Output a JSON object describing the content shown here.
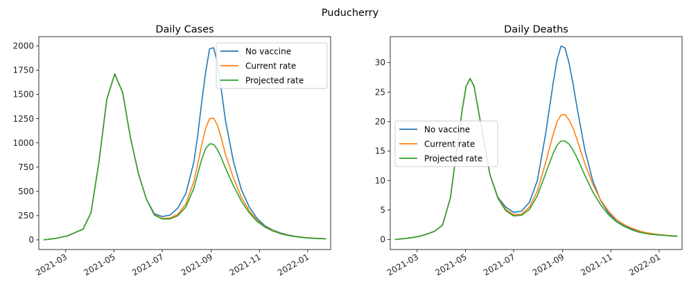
{
  "figure_title": "Puducherry",
  "chart_data": [
    {
      "type": "line",
      "title": "Daily Cases",
      "xlabel": "",
      "ylabel": "",
      "x_ticks": [
        "2021-03",
        "2021-05",
        "2021-07",
        "2021-09",
        "2021-11",
        "2022-01"
      ],
      "y_ticks": [
        0,
        250,
        500,
        750,
        1000,
        1250,
        1500,
        1750,
        2000
      ],
      "ylim": [
        -100,
        2095
      ],
      "legend_position": "upper-right",
      "series": [
        {
          "name": "No vaccine",
          "color": "#1f77b4",
          "x": [
            0,
            15,
            30,
            40,
            50,
            60,
            70,
            80,
            90,
            100,
            110,
            120,
            130,
            140,
            150,
            160,
            170,
            180,
            190,
            195,
            200,
            205,
            210,
            215,
            220,
            225,
            230,
            240,
            250,
            260,
            270,
            280,
            290,
            300,
            310,
            320,
            330,
            340,
            350,
            357
          ],
          "y": [
            0,
            15,
            40,
            75,
            110,
            280,
            800,
            1450,
            1710,
            1520,
            1050,
            680,
            420,
            270,
            240,
            255,
            330,
            480,
            800,
            1080,
            1420,
            1730,
            1970,
            1980,
            1820,
            1530,
            1230,
            810,
            520,
            340,
            220,
            145,
            100,
            70,
            50,
            35,
            25,
            18,
            14,
            12
          ]
        },
        {
          "name": "Current rate",
          "color": "#ff7f0e",
          "x": [
            0,
            15,
            30,
            40,
            50,
            60,
            70,
            80,
            90,
            100,
            110,
            120,
            130,
            140,
            150,
            160,
            170,
            180,
            190,
            195,
            200,
            205,
            210,
            215,
            220,
            225,
            230,
            240,
            250,
            260,
            270,
            280,
            290,
            300,
            310,
            320,
            330,
            340,
            350,
            357
          ],
          "y": [
            0,
            15,
            40,
            75,
            110,
            280,
            800,
            1450,
            1710,
            1520,
            1050,
            680,
            420,
            260,
            220,
            225,
            265,
            370,
            600,
            780,
            980,
            1150,
            1250,
            1255,
            1180,
            1040,
            880,
            640,
            440,
            300,
            200,
            135,
            95,
            65,
            47,
            33,
            24,
            17,
            13,
            11
          ]
        },
        {
          "name": "Projected rate",
          "color": "#2ca02c",
          "x": [
            0,
            15,
            30,
            40,
            50,
            60,
            70,
            80,
            90,
            100,
            110,
            120,
            130,
            140,
            150,
            160,
            170,
            180,
            190,
            195,
            200,
            205,
            210,
            215,
            220,
            225,
            230,
            240,
            250,
            260,
            270,
            280,
            290,
            300,
            310,
            320,
            330,
            340,
            350,
            357
          ],
          "y": [
            0,
            15,
            40,
            75,
            110,
            280,
            800,
            1450,
            1710,
            1520,
            1050,
            680,
            420,
            255,
            215,
            215,
            250,
            340,
            530,
            680,
            830,
            940,
            990,
            985,
            930,
            840,
            740,
            560,
            400,
            280,
            190,
            130,
            90,
            62,
            44,
            31,
            22,
            16,
            12,
            10
          ]
        }
      ]
    },
    {
      "type": "line",
      "title": "Daily Deaths",
      "xlabel": "",
      "ylabel": "",
      "x_ticks": [
        "2021-03",
        "2021-05",
        "2021-07",
        "2021-09",
        "2021-11",
        "2022-01"
      ],
      "y_ticks": [
        0,
        5,
        10,
        15,
        20,
        25,
        30
      ],
      "ylim": [
        -1.7,
        34.4
      ],
      "legend_position": "center-left",
      "series": [
        {
          "name": "No vaccine",
          "color": "#1f77b4",
          "x": [
            0,
            15,
            30,
            40,
            50,
            60,
            70,
            80,
            85,
            90,
            95,
            100,
            110,
            120,
            130,
            140,
            150,
            160,
            170,
            180,
            190,
            200,
            205,
            210,
            215,
            220,
            225,
            230,
            240,
            250,
            260,
            270,
            280,
            290,
            300,
            310,
            320,
            330,
            340,
            350,
            357
          ],
          "y": [
            0,
            0.2,
            0.5,
            0.9,
            1.4,
            2.4,
            7,
            17,
            22,
            26,
            27.3,
            26,
            18.5,
            11,
            7.2,
            5.5,
            4.6,
            4.8,
            6.3,
            10,
            17.5,
            26.5,
            30.5,
            32.8,
            32.5,
            30,
            26.5,
            22.5,
            15.2,
            10,
            6.6,
            4.5,
            3.1,
            2.3,
            1.7,
            1.3,
            1.0,
            0.8,
            0.7,
            0.6,
            0.55
          ]
        },
        {
          "name": "Current rate",
          "color": "#ff7f0e",
          "x": [
            0,
            15,
            30,
            40,
            50,
            60,
            70,
            80,
            85,
            90,
            95,
            100,
            110,
            120,
            130,
            140,
            150,
            160,
            170,
            180,
            190,
            200,
            205,
            210,
            215,
            220,
            225,
            230,
            240,
            250,
            260,
            270,
            280,
            290,
            300,
            310,
            320,
            330,
            340,
            350,
            357
          ],
          "y": [
            0,
            0.2,
            0.5,
            0.9,
            1.4,
            2.4,
            7,
            17,
            22,
            26,
            27.3,
            26,
            18.5,
            11,
            7.1,
            5.1,
            4.2,
            4.3,
            5.5,
            8.2,
            12.8,
            17.8,
            20,
            21.1,
            21.2,
            20.3,
            18.9,
            17,
            12.9,
            9.4,
            6.7,
            4.8,
            3.4,
            2.5,
            1.9,
            1.4,
            1.1,
            0.9,
            0.75,
            0.65,
            0.6
          ]
        },
        {
          "name": "Projected rate",
          "color": "#2ca02c",
          "x": [
            0,
            15,
            30,
            40,
            50,
            60,
            70,
            80,
            85,
            90,
            95,
            100,
            110,
            120,
            130,
            140,
            150,
            160,
            170,
            180,
            190,
            200,
            205,
            210,
            215,
            220,
            225,
            230,
            240,
            250,
            260,
            270,
            280,
            290,
            300,
            310,
            320,
            330,
            340,
            350,
            357
          ],
          "y": [
            0,
            0.2,
            0.5,
            0.9,
            1.4,
            2.4,
            7,
            17,
            22,
            26,
            27.3,
            26,
            18.5,
            11,
            7.0,
            4.9,
            4.0,
            4.1,
            5.1,
            7.4,
            11,
            14.6,
            16,
            16.7,
            16.7,
            16.2,
            15.2,
            13.9,
            10.9,
            8.1,
            5.9,
            4.2,
            3.0,
            2.2,
            1.6,
            1.2,
            0.95,
            0.8,
            0.7,
            0.6,
            0.55
          ]
        }
      ]
    }
  ]
}
